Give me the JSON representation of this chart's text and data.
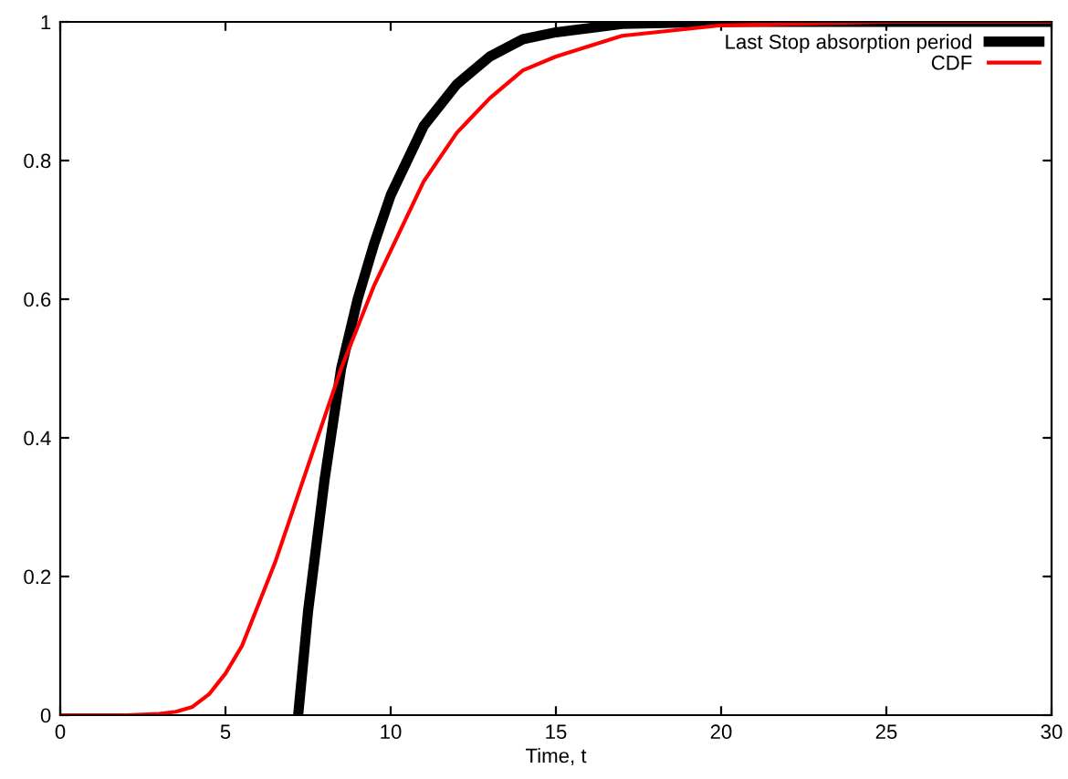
{
  "chart_data": {
    "type": "line",
    "xlabel": "Time, t",
    "xlim": [
      0,
      30
    ],
    "ylim": [
      0,
      1
    ],
    "xticks": [
      0,
      5,
      10,
      15,
      20,
      25,
      30
    ],
    "yticks": [
      0,
      0.2,
      0.4,
      0.6,
      0.8,
      1
    ],
    "grid": false,
    "legend": "top right",
    "marker": "none",
    "line_style": "solid",
    "series": [
      {
        "name": "Last Stop absorption period",
        "color": "#000000",
        "x": [
          7.2,
          7.5,
          8,
          8.5,
          9,
          9.5,
          10,
          11,
          12,
          13,
          14,
          15,
          17,
          20,
          25,
          30
        ],
        "values": [
          0,
          0.15,
          0.34,
          0.5,
          0.6,
          0.68,
          0.75,
          0.85,
          0.91,
          0.95,
          0.975,
          0.985,
          0.997,
          1,
          1,
          1
        ]
      },
      {
        "name": "CDF",
        "color": "#ff0000",
        "x": [
          0,
          2,
          3,
          3.5,
          4,
          4.5,
          5,
          5.5,
          6,
          6.5,
          7,
          7.5,
          8,
          8.5,
          9,
          9.5,
          10,
          11,
          12,
          13,
          14,
          15,
          17,
          20,
          25,
          30
        ],
        "values": [
          0,
          0,
          0.002,
          0.005,
          0.012,
          0.03,
          0.06,
          0.1,
          0.16,
          0.22,
          0.29,
          0.36,
          0.43,
          0.5,
          0.56,
          0.62,
          0.67,
          0.77,
          0.84,
          0.89,
          0.93,
          0.95,
          0.98,
          0.995,
          1,
          1
        ]
      }
    ]
  }
}
